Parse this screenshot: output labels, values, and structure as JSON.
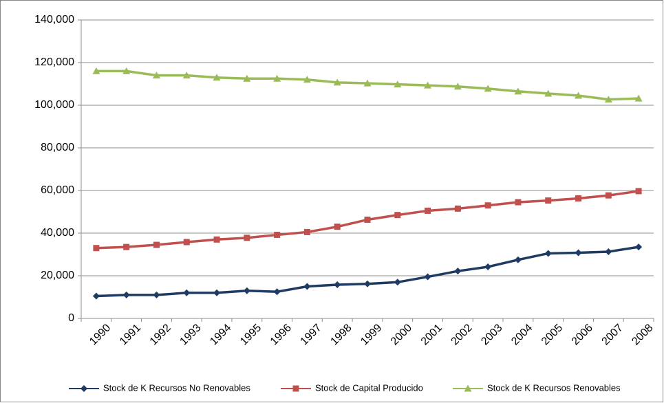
{
  "chart_data": {
    "type": "line",
    "categories": [
      "1990",
      "1991",
      "1992",
      "1993",
      "1994",
      "1995",
      "1996",
      "1997",
      "1998",
      "1999",
      "2000",
      "2001",
      "2002",
      "2003",
      "2004",
      "2005",
      "2006",
      "2007",
      "2008"
    ],
    "series": [
      {
        "name": "Stock de K Recursos No Renovables",
        "color": "#1F3B63",
        "marker": "diamond",
        "values": [
          10500,
          11000,
          11000,
          12000,
          12000,
          13000,
          12500,
          15000,
          15800,
          16200,
          17000,
          19500,
          22200,
          24200,
          27500,
          30500,
          30800,
          31300,
          33500
        ]
      },
      {
        "name": "Stock de Capital Producido",
        "color": "#C0504D",
        "marker": "square",
        "values": [
          33000,
          33500,
          34500,
          35800,
          37000,
          37800,
          39200,
          40500,
          43000,
          46300,
          48500,
          50500,
          51500,
          53000,
          54500,
          55300,
          56300,
          57700,
          59700
        ]
      },
      {
        "name": "Stock de K Recursos Renovables",
        "color": "#9BBB59",
        "marker": "triangle",
        "values": [
          116000,
          116000,
          114000,
          114000,
          113000,
          112500,
          112500,
          112000,
          110700,
          110300,
          109800,
          109300,
          108800,
          107800,
          106500,
          105500,
          104500,
          102700,
          103200
        ]
      }
    ],
    "ylim": [
      0,
      140000
    ],
    "yticks": [
      0,
      {
        "value": 20000,
        "label": "20,000"
      },
      {
        "value": 40000,
        "label": "40,000"
      },
      {
        "value": 60000,
        "label": "60,000"
      },
      {
        "value": 80000,
        "label": "80,000"
      },
      {
        "value": 100000,
        "label": "100,000"
      },
      {
        "value": 120000,
        "label": "120,000"
      },
      {
        "value": 140000,
        "label": "140,000"
      }
    ],
    "grid": true,
    "legend": "bottom"
  }
}
